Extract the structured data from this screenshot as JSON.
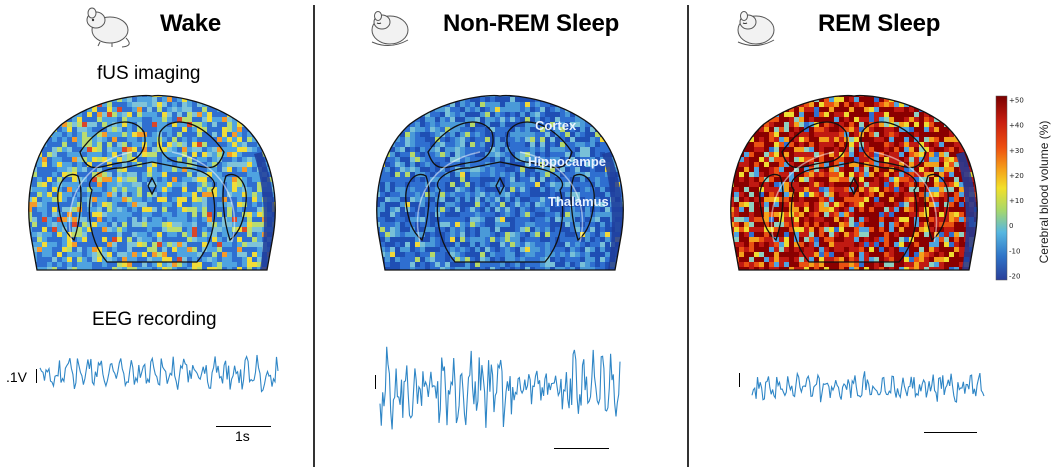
{
  "panels": [
    {
      "title": "Wake",
      "state": "wake"
    },
    {
      "title": "Non-REM Sleep",
      "state": "nrem"
    },
    {
      "title": "REM Sleep",
      "state": "rem"
    }
  ],
  "captions": {
    "fus": "fUS imaging",
    "eeg": "EEG recording"
  },
  "regions": {
    "cortex": "Cortex",
    "hippocampe": "Hippocampe",
    "thalamus": "Thalamus"
  },
  "scale": {
    "voltage": ".1V",
    "time": "1s"
  },
  "colorbar": {
    "title": "Cerebral blood volume (%)",
    "ticks": [
      "+50",
      "+40",
      "+30",
      "+20",
      "+10",
      "0",
      "-10",
      "-20"
    ],
    "colors": [
      "#7a0000",
      "#c81e10",
      "#ee5010",
      "#f5a21a",
      "#f2e02a",
      "#a8d86a",
      "#57b7e0",
      "#2f74c8",
      "#2a3f9a"
    ]
  },
  "trace_color": "#2f86c6"
}
